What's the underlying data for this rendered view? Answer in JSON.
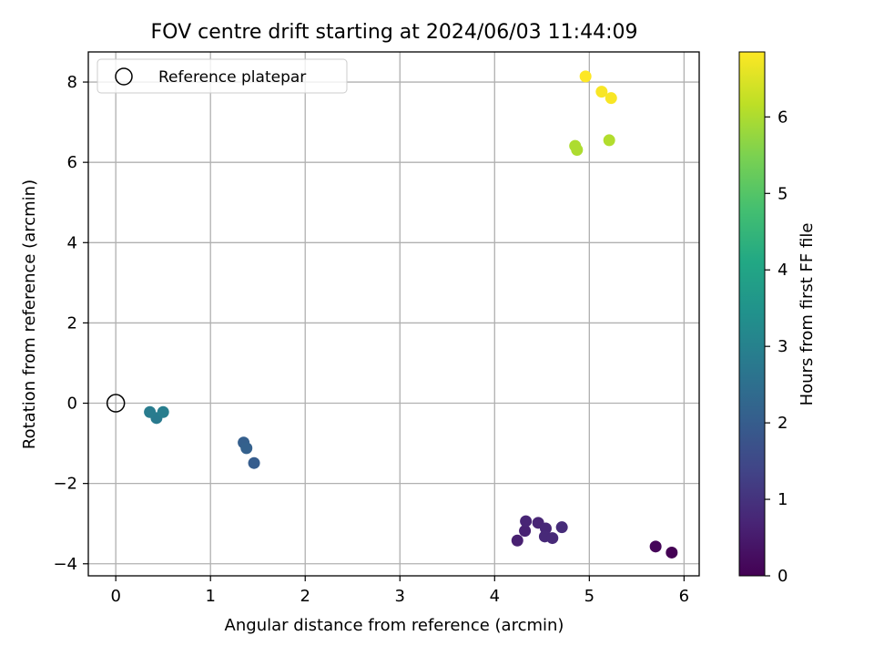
{
  "chart_data": {
    "type": "scatter",
    "title": "FOV centre drift starting at 2024/06/03 11:44:09",
    "xlabel": "Angular distance from reference (arcmin)",
    "ylabel": "Rotation from reference (arcmin)",
    "xlim": [
      -0.29,
      6.16
    ],
    "ylim": [
      -4.3,
      8.75
    ],
    "xticks": [
      0,
      1,
      2,
      3,
      4,
      5,
      6
    ],
    "yticks": [
      -4,
      -2,
      0,
      2,
      4,
      6,
      8
    ],
    "grid": true,
    "legend": {
      "placement": "top-left",
      "entries": [
        "Reference platepar"
      ]
    },
    "reference_point": {
      "x": 0,
      "y": 0,
      "style": "hollow black circle"
    },
    "colorbar": {
      "label": "Hours from first FF file",
      "colormap": "viridis",
      "range": [
        0,
        6.85
      ],
      "ticks": [
        0,
        1,
        2,
        3,
        4,
        5,
        6
      ]
    },
    "points": [
      {
        "x": 5.87,
        "y": -3.72,
        "hours": 0.0
      },
      {
        "x": 5.7,
        "y": -3.57,
        "hours": 0.1
      },
      {
        "x": 4.24,
        "y": -3.42,
        "hours": 0.6
      },
      {
        "x": 4.32,
        "y": -3.18,
        "hours": 0.65
      },
      {
        "x": 4.33,
        "y": -2.94,
        "hours": 0.7
      },
      {
        "x": 4.46,
        "y": -2.98,
        "hours": 0.7
      },
      {
        "x": 4.54,
        "y": -3.12,
        "hours": 0.75
      },
      {
        "x": 4.53,
        "y": -3.32,
        "hours": 0.8
      },
      {
        "x": 4.61,
        "y": -3.36,
        "hours": 0.8
      },
      {
        "x": 4.71,
        "y": -3.09,
        "hours": 0.85
      },
      {
        "x": 1.46,
        "y": -1.49,
        "hours": 2.0
      },
      {
        "x": 1.35,
        "y": -0.98,
        "hours": 2.05
      },
      {
        "x": 1.38,
        "y": -1.12,
        "hours": 2.1
      },
      {
        "x": 0.43,
        "y": -0.37,
        "hours": 2.8
      },
      {
        "x": 0.36,
        "y": -0.22,
        "hours": 2.85
      },
      {
        "x": 0.5,
        "y": -0.22,
        "hours": 2.9
      },
      {
        "x": 4.85,
        "y": 6.41,
        "hours": 6.0
      },
      {
        "x": 4.87,
        "y": 6.31,
        "hours": 6.0
      },
      {
        "x": 5.21,
        "y": 6.55,
        "hours": 6.05
      },
      {
        "x": 4.96,
        "y": 8.14,
        "hours": 6.85
      },
      {
        "x": 5.13,
        "y": 7.76,
        "hours": 6.8
      },
      {
        "x": 5.23,
        "y": 7.6,
        "hours": 6.8
      }
    ]
  }
}
